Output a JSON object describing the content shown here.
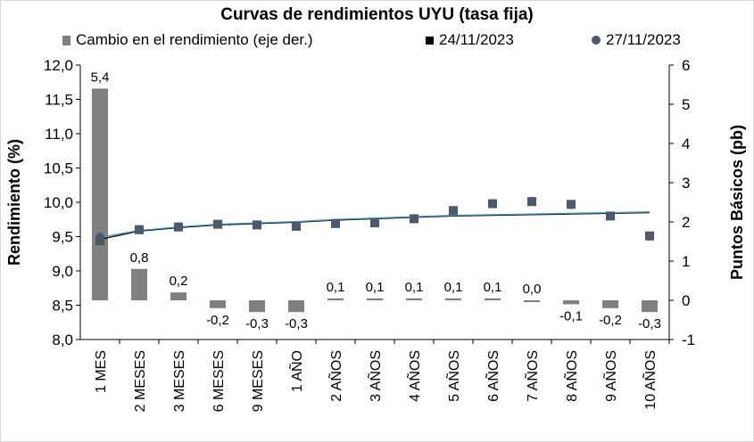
{
  "title": "Curvas de rendimientos UYU (tasa fija)",
  "legend": {
    "bars": "Cambio en el rendimiento (eje der.)",
    "s1": "24/11/2023",
    "s2": "27/11/2023"
  },
  "chart_data": {
    "type": "bar+scatter",
    "title": "Curvas de rendimientos UYU (tasa fija)",
    "categories": [
      "1 MES",
      "2 MESES",
      "3 MESES",
      "6 MESES",
      "9 MESES",
      "1 AÑO",
      "2 AÑOS",
      "3 AÑOS",
      "4 AÑOS",
      "5 AÑOS",
      "6 AÑOS",
      "7 AÑOS",
      "8 AÑOS",
      "9 AÑOS",
      "10 AÑOS"
    ],
    "ylabel_left": "Rendimiento (%)",
    "ylabel_right": "Puntos Básicos (pb)",
    "ylim_left": [
      8.0,
      12.0
    ],
    "ylim_right": [
      -1,
      6
    ],
    "yticks_left": [
      "8,0",
      "8,5",
      "9,0",
      "9,5",
      "10,0",
      "10,5",
      "11,0",
      "11,5",
      "12,0"
    ],
    "yticks_right": [
      "-1",
      "0",
      "1",
      "2",
      "3",
      "4",
      "5",
      "6"
    ],
    "bars": {
      "name": "Cambio en el rendimiento (eje der.)",
      "color": "#808080",
      "values": [
        5.4,
        0.8,
        0.2,
        -0.2,
        -0.3,
        -0.3,
        0.05,
        0.05,
        0.05,
        0.05,
        0.05,
        0.0,
        -0.1,
        -0.2,
        -0.3
      ],
      "labels": [
        "5,4",
        "0,8",
        "0,2",
        "-0,2",
        "-0,3",
        "-0,3",
        "0,1",
        "0,1",
        "0,1",
        "0,1",
        "0,1",
        "0,0",
        "-0,1",
        "-0,2",
        "-0,3"
      ]
    },
    "series": [
      {
        "name": "24/11/2023",
        "marker": "square",
        "color": "#555555",
        "values": [
          9.44,
          9.6,
          9.64,
          9.68,
          9.67,
          9.65,
          9.69,
          9.7,
          9.76,
          9.88,
          9.98,
          10.01,
          9.97,
          9.8,
          9.51
        ]
      },
      {
        "name": "27/11/2023",
        "marker": "circle",
        "color": "#4a5a70",
        "values": [
          9.5,
          9.61,
          9.65,
          9.68,
          9.67,
          9.65,
          9.7,
          9.7,
          9.77,
          9.88,
          9.98,
          10.02,
          9.96,
          9.8,
          9.5
        ]
      }
    ],
    "curves": [
      {
        "color": "#000000",
        "values": [
          9.46,
          9.58,
          9.63,
          9.67,
          9.69,
          9.71,
          9.74,
          9.76,
          9.78,
          9.8,
          9.81,
          9.82,
          9.83,
          9.84,
          9.85
        ]
      },
      {
        "color": "#4a9ac2",
        "values": [
          9.49,
          9.59,
          9.64,
          9.68,
          9.7,
          9.72,
          9.75,
          9.77,
          9.79,
          9.81,
          9.82,
          9.83,
          9.84,
          9.85,
          9.86
        ]
      }
    ]
  }
}
